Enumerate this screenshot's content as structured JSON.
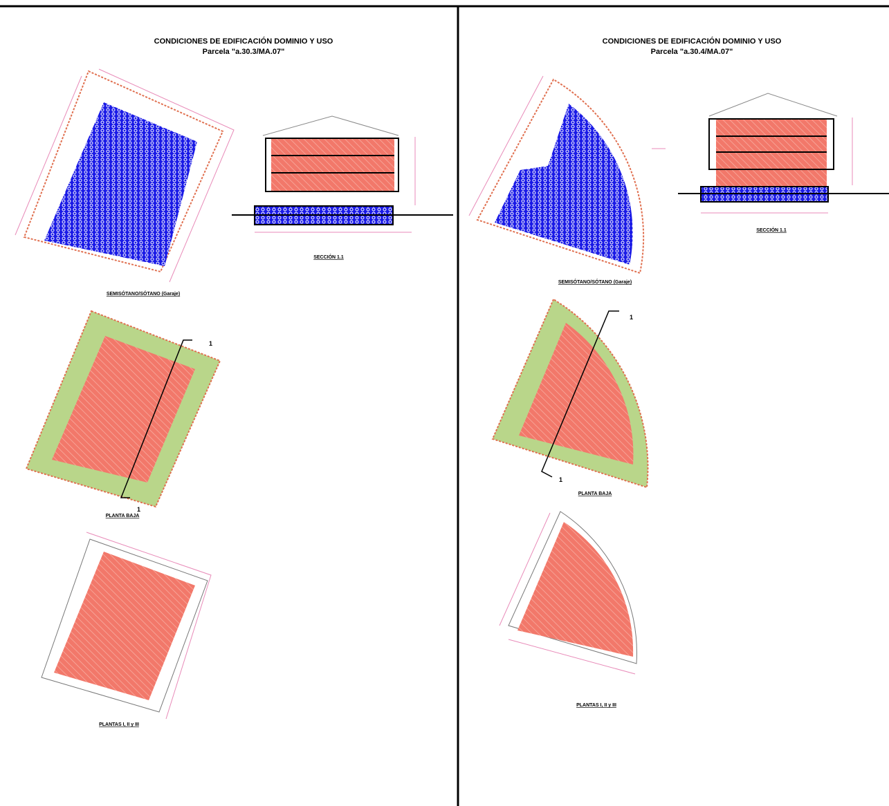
{
  "panels": [
    {
      "title": "CONDICIONES DE EDIFICACIÓN DOMINIO Y USO",
      "parcel": "Parcela \"a.30.3/MA.07\"",
      "basement": "SEMISÓTANO/SÓTANO (Garaje)",
      "section": "SECCIÓN 1.1",
      "ground_floor": "PLANTA BAJA",
      "upper_floors": "PLANTAS I, II y III",
      "section_mark": "1"
    },
    {
      "title": "CONDICIONES DE EDIFICACIÓN DOMINIO Y USO",
      "parcel": "Parcela \"a.30.4/MA.07\"",
      "basement": "SEMISÓTANO/SÓTANO (Garaje)",
      "section": "SECCIÓN 1.1",
      "ground_floor": "PLANTA BAJA",
      "upper_floors": "PLANTAS I, II y III",
      "section_mark": "1"
    }
  ]
}
